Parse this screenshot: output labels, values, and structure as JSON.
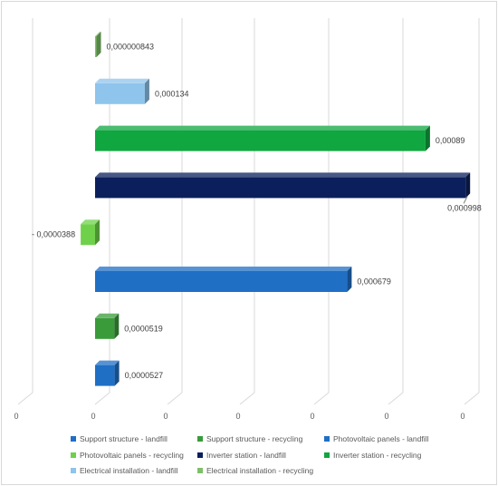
{
  "chart_data": {
    "type": "bar",
    "orientation": "horizontal",
    "style": "3d",
    "title": "",
    "xlabel": "",
    "ylabel": "",
    "xlim": [
      -0.0001,
      0.001
    ],
    "x_tick_labels": [
      "0",
      "0",
      "0",
      "0",
      "0",
      "0",
      "0"
    ],
    "grid": true,
    "legend_position": "bottom",
    "categories": [
      "Support structure - landfill",
      "Support structure - recycling",
      "Photovoltaic panels - landfill",
      "Photovoltaic panels - recycling",
      "Inverter station - landfill",
      "Inverter station - recycling",
      "Electrical installation - landfill",
      "Electrical installation - recycling"
    ],
    "values": [
      5.27e-05,
      5.19e-05,
      0.000679,
      -3.88e-05,
      0.000998,
      0.00089,
      0.000134,
      8.43e-07
    ],
    "data_labels": [
      "0,0000527",
      "0,0000519",
      "0,000679",
      "- 0,0000388",
      "0,000998",
      "0,00089",
      "0,000134",
      "0,000000843"
    ],
    "colors": [
      "#1f6fc5",
      "#3a9b3a",
      "#1f6fc5",
      "#6fd14a",
      "#0b1f5c",
      "#10a640",
      "#8fc4ec",
      "#7fbf6a"
    ],
    "legend": [
      {
        "label": "Support structure - landfill",
        "color": "#1f6fc5"
      },
      {
        "label": "Support structure - recycling",
        "color": "#3a9b3a"
      },
      {
        "label": "Photovoltaic panels - landfill",
        "color": "#1f6fc5"
      },
      {
        "label": "Photovoltaic panels - recycling",
        "color": "#6fd14a"
      },
      {
        "label": "Inverter station - landfill",
        "color": "#0b1f5c"
      },
      {
        "label": "Inverter station - recycling",
        "color": "#10a640"
      },
      {
        "label": "Electrical installation - landfill",
        "color": "#8fc4ec"
      },
      {
        "label": "Electrical installation - recycling",
        "color": "#7fbf6a"
      }
    ]
  }
}
